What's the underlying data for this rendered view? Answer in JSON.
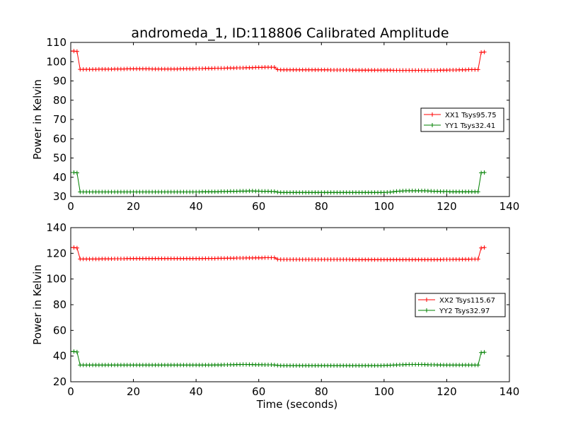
{
  "colors": {
    "xx": "#ff0000",
    "yy": "#008000"
  },
  "chart_data": [
    {
      "type": "line",
      "title": "andromeda_1, ID:118806 Calibrated Amplitude",
      "xlabel": "",
      "ylabel": "Power in Kelvin",
      "xlim": [
        0,
        140
      ],
      "ylim": [
        30,
        110
      ],
      "xticks": [
        "0",
        "20",
        "40",
        "60",
        "80",
        "100",
        "120",
        "140"
      ],
      "yticks": [
        "30",
        "40",
        "50",
        "60",
        "70",
        "80",
        "90",
        "100",
        "110"
      ],
      "grid": false,
      "legend_position": "right",
      "marker": "+",
      "x": [
        0,
        1,
        2,
        3,
        4,
        5,
        6,
        7,
        8,
        9,
        10,
        11,
        12,
        13,
        14,
        15,
        16,
        17,
        18,
        19,
        20,
        21,
        22,
        23,
        24,
        25,
        26,
        27,
        28,
        29,
        30,
        31,
        32,
        33,
        34,
        35,
        36,
        37,
        38,
        39,
        40,
        41,
        42,
        43,
        44,
        45,
        46,
        47,
        48,
        49,
        50,
        51,
        52,
        53,
        54,
        55,
        56,
        57,
        58,
        59,
        60,
        61,
        62,
        63,
        64,
        65,
        66,
        67,
        68,
        69,
        70,
        71,
        72,
        73,
        74,
        75,
        76,
        77,
        78,
        79,
        80,
        81,
        82,
        83,
        84,
        85,
        86,
        87,
        88,
        89,
        90,
        91,
        92,
        93,
        94,
        95,
        96,
        97,
        98,
        99,
        100,
        101,
        102,
        103,
        104,
        105,
        106,
        107,
        108,
        109,
        110,
        111,
        112,
        113,
        114,
        115,
        116,
        117,
        118,
        119,
        120,
        121,
        122,
        123,
        124,
        125,
        126,
        127,
        128,
        129,
        130,
        131,
        132
      ],
      "series": [
        {
          "name": "XX1 Tsys95.75",
          "color": "#ff0000",
          "values": [
            105.5,
            105.5,
            105.3,
            96.0,
            96.0,
            96.0,
            96.0,
            96.0,
            96.0,
            96.1,
            96.1,
            96.1,
            96.1,
            96.1,
            96.2,
            96.2,
            96.2,
            96.2,
            96.3,
            96.3,
            96.3,
            96.3,
            96.3,
            96.3,
            96.3,
            96.3,
            96.2,
            96.2,
            96.2,
            96.2,
            96.2,
            96.2,
            96.2,
            96.2,
            96.2,
            96.3,
            96.3,
            96.3,
            96.3,
            96.3,
            96.4,
            96.4,
            96.4,
            96.5,
            96.5,
            96.5,
            96.6,
            96.6,
            96.6,
            96.6,
            96.7,
            96.7,
            96.7,
            96.8,
            96.8,
            96.8,
            96.9,
            96.9,
            96.9,
            97.0,
            97.0,
            97.0,
            97.1,
            97.1,
            97.1,
            97.1,
            95.9,
            95.8,
            95.8,
            95.8,
            95.8,
            95.8,
            95.8,
            95.8,
            95.8,
            95.8,
            95.8,
            95.8,
            95.8,
            95.8,
            95.8,
            95.8,
            95.8,
            95.7,
            95.7,
            95.7,
            95.7,
            95.7,
            95.7,
            95.7,
            95.6,
            95.6,
            95.6,
            95.6,
            95.6,
            95.6,
            95.6,
            95.6,
            95.6,
            95.6,
            95.6,
            95.6,
            95.6,
            95.5,
            95.5,
            95.5,
            95.5,
            95.5,
            95.5,
            95.5,
            95.5,
            95.5,
            95.5,
            95.5,
            95.5,
            95.5,
            95.5,
            95.5,
            95.6,
            95.6,
            95.6,
            95.7,
            95.7,
            95.7,
            95.8,
            95.8,
            95.8,
            95.9,
            95.9,
            95.9,
            95.9,
            104.8,
            105.0
          ]
        },
        {
          "name": "YY1 Tsys32.41",
          "color": "#008000",
          "values": [
            42.5,
            42.5,
            42.3,
            32.4,
            32.4,
            32.4,
            32.4,
            32.4,
            32.4,
            32.4,
            32.4,
            32.4,
            32.4,
            32.4,
            32.4,
            32.4,
            32.4,
            32.4,
            32.4,
            32.4,
            32.4,
            32.4,
            32.4,
            32.4,
            32.4,
            32.4,
            32.4,
            32.4,
            32.4,
            32.4,
            32.4,
            32.4,
            32.4,
            32.4,
            32.4,
            32.4,
            32.4,
            32.4,
            32.4,
            32.4,
            32.4,
            32.4,
            32.5,
            32.5,
            32.5,
            32.5,
            32.5,
            32.5,
            32.6,
            32.6,
            32.6,
            32.7,
            32.7,
            32.7,
            32.8,
            32.8,
            32.8,
            32.9,
            32.9,
            32.8,
            32.8,
            32.7,
            32.7,
            32.7,
            32.6,
            32.6,
            32.3,
            32.1,
            32.1,
            32.1,
            32.1,
            32.1,
            32.1,
            32.1,
            32.1,
            32.1,
            32.1,
            32.1,
            32.1,
            32.1,
            32.1,
            32.1,
            32.1,
            32.1,
            32.1,
            32.1,
            32.1,
            32.1,
            32.1,
            32.1,
            32.1,
            32.1,
            32.1,
            32.1,
            32.1,
            32.1,
            32.1,
            32.1,
            32.1,
            32.1,
            32.1,
            32.2,
            32.3,
            32.5,
            32.7,
            32.8,
            32.9,
            33.0,
            33.0,
            33.0,
            33.0,
            33.0,
            33.0,
            33.0,
            32.9,
            32.8,
            32.7,
            32.7,
            32.6,
            32.6,
            32.6,
            32.5,
            32.5,
            32.5,
            32.5,
            32.5,
            32.5,
            32.5,
            32.5,
            32.5,
            32.5,
            42.3,
            42.5
          ]
        }
      ]
    },
    {
      "type": "line",
      "title": "",
      "xlabel": "Time (seconds)",
      "ylabel": "Power in Kelvin",
      "xlim": [
        0,
        140
      ],
      "ylim": [
        20,
        140
      ],
      "xticks": [
        "0",
        "20",
        "40",
        "60",
        "80",
        "100",
        "120",
        "140"
      ],
      "yticks": [
        "20",
        "40",
        "60",
        "80",
        "100",
        "120",
        "140"
      ],
      "grid": false,
      "legend_position": "right",
      "marker": "+",
      "x": [
        0,
        1,
        2,
        3,
        4,
        5,
        6,
        7,
        8,
        9,
        10,
        11,
        12,
        13,
        14,
        15,
        16,
        17,
        18,
        19,
        20,
        21,
        22,
        23,
        24,
        25,
        26,
        27,
        28,
        29,
        30,
        31,
        32,
        33,
        34,
        35,
        36,
        37,
        38,
        39,
        40,
        41,
        42,
        43,
        44,
        45,
        46,
        47,
        48,
        49,
        50,
        51,
        52,
        53,
        54,
        55,
        56,
        57,
        58,
        59,
        60,
        61,
        62,
        63,
        64,
        65,
        66,
        67,
        68,
        69,
        70,
        71,
        72,
        73,
        74,
        75,
        76,
        77,
        78,
        79,
        80,
        81,
        82,
        83,
        84,
        85,
        86,
        87,
        88,
        89,
        90,
        91,
        92,
        93,
        94,
        95,
        96,
        97,
        98,
        99,
        100,
        101,
        102,
        103,
        104,
        105,
        106,
        107,
        108,
        109,
        110,
        111,
        112,
        113,
        114,
        115,
        116,
        117,
        118,
        119,
        120,
        121,
        122,
        123,
        124,
        125,
        126,
        127,
        128,
        129,
        130,
        131,
        132
      ],
      "series": [
        {
          "name": "XX2 Tsys115.67",
          "color": "#ff0000",
          "values": [
            124.5,
            124.5,
            124.2,
            115.6,
            115.6,
            115.6,
            115.6,
            115.6,
            115.6,
            115.6,
            115.7,
            115.7,
            115.7,
            115.7,
            115.8,
            115.8,
            115.8,
            115.8,
            115.9,
            115.9,
            115.9,
            115.9,
            115.9,
            115.9,
            115.9,
            115.9,
            115.9,
            115.9,
            115.9,
            115.9,
            115.9,
            115.9,
            115.9,
            115.9,
            115.9,
            115.9,
            115.9,
            115.9,
            115.9,
            115.9,
            115.9,
            115.9,
            115.9,
            116.0,
            116.0,
            116.0,
            116.0,
            116.1,
            116.1,
            116.1,
            116.2,
            116.2,
            116.2,
            116.3,
            116.3,
            116.3,
            116.4,
            116.4,
            116.4,
            116.5,
            116.5,
            116.5,
            116.6,
            116.6,
            116.6,
            116.6,
            115.4,
            115.2,
            115.2,
            115.2,
            115.2,
            115.2,
            115.2,
            115.2,
            115.2,
            115.2,
            115.2,
            115.2,
            115.2,
            115.2,
            115.2,
            115.2,
            115.2,
            115.2,
            115.2,
            115.2,
            115.2,
            115.2,
            115.2,
            115.2,
            115.1,
            115.1,
            115.1,
            115.1,
            115.1,
            115.1,
            115.1,
            115.1,
            115.1,
            115.1,
            115.1,
            115.1,
            115.1,
            115.1,
            115.1,
            115.1,
            115.1,
            115.1,
            115.1,
            115.1,
            115.1,
            115.1,
            115.1,
            115.1,
            115.1,
            115.1,
            115.1,
            115.1,
            115.1,
            115.2,
            115.2,
            115.2,
            115.3,
            115.3,
            115.3,
            115.4,
            115.4,
            115.4,
            115.5,
            115.5,
            115.5,
            124.2,
            124.5
          ]
        },
        {
          "name": "YY2 Tsys32.97",
          "color": "#008000",
          "values": [
            43.5,
            43.5,
            43.2,
            33.0,
            33.0,
            33.0,
            33.0,
            33.0,
            33.0,
            33.0,
            33.0,
            33.0,
            33.0,
            33.0,
            33.0,
            33.0,
            33.0,
            33.0,
            33.0,
            33.0,
            33.0,
            33.0,
            33.0,
            33.0,
            33.0,
            33.0,
            33.0,
            33.0,
            33.0,
            33.0,
            33.0,
            33.0,
            33.0,
            33.0,
            33.0,
            33.0,
            33.0,
            33.0,
            33.0,
            33.0,
            33.0,
            33.0,
            33.0,
            33.0,
            33.0,
            33.0,
            33.1,
            33.1,
            33.1,
            33.2,
            33.2,
            33.3,
            33.3,
            33.4,
            33.4,
            33.5,
            33.5,
            33.4,
            33.4,
            33.3,
            33.3,
            33.3,
            33.2,
            33.2,
            33.2,
            33.1,
            32.8,
            32.6,
            32.6,
            32.6,
            32.6,
            32.6,
            32.6,
            32.6,
            32.6,
            32.6,
            32.6,
            32.6,
            32.6,
            32.6,
            32.6,
            32.6,
            32.6,
            32.6,
            32.6,
            32.6,
            32.6,
            32.6,
            32.6,
            32.6,
            32.6,
            32.6,
            32.6,
            32.6,
            32.6,
            32.6,
            32.6,
            32.6,
            32.6,
            32.6,
            32.7,
            32.8,
            32.9,
            33.0,
            33.1,
            33.2,
            33.3,
            33.4,
            33.5,
            33.5,
            33.5,
            33.5,
            33.5,
            33.4,
            33.3,
            33.2,
            33.2,
            33.1,
            33.1,
            33.0,
            33.0,
            33.0,
            33.0,
            33.0,
            33.0,
            33.0,
            33.0,
            33.0,
            33.0,
            33.0,
            33.0,
            42.7,
            43.0
          ]
        }
      ]
    }
  ]
}
